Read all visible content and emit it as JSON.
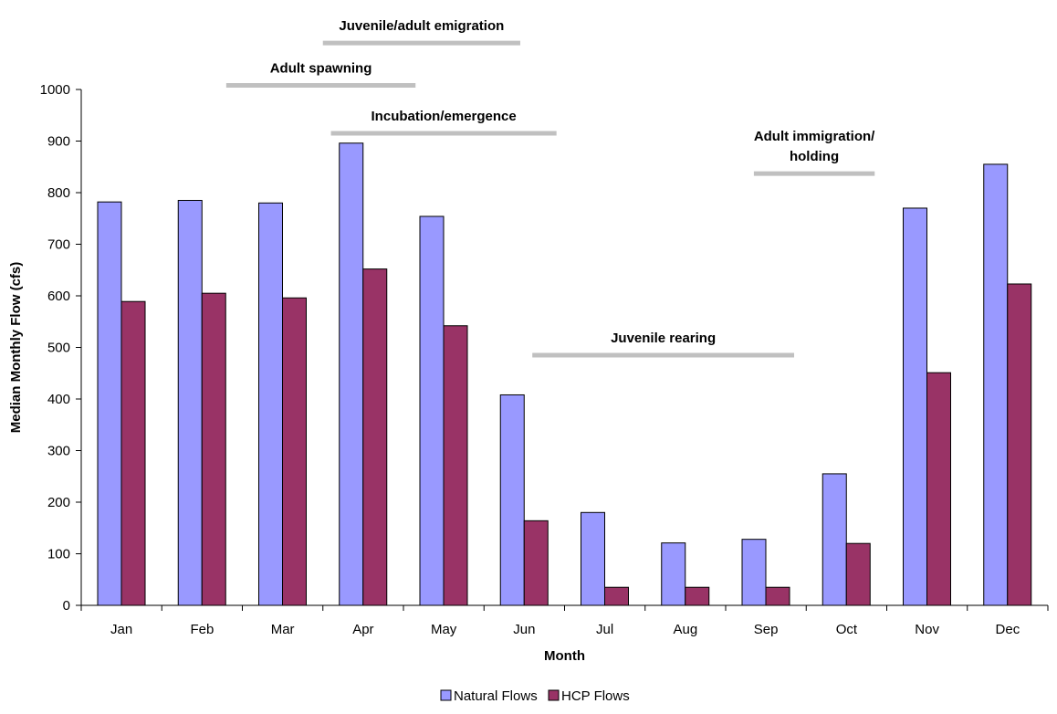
{
  "chart_data": {
    "type": "bar",
    "title": "",
    "xlabel": "Month",
    "ylabel": "Median Monthly Flow (cfs)",
    "ylim": [
      0,
      1000
    ],
    "yticks": [
      0,
      100,
      200,
      300,
      400,
      500,
      600,
      700,
      800,
      900,
      1000
    ],
    "categories": [
      "Jan",
      "Feb",
      "Mar",
      "Apr",
      "May",
      "Jun",
      "Jul",
      "Aug",
      "Sep",
      "Oct",
      "Nov",
      "Dec"
    ],
    "series": [
      {
        "name": "Natural Flows",
        "color": "#9999ff",
        "values": [
          782,
          785,
          780,
          896,
          754,
          408,
          180,
          121,
          128,
          255,
          770,
          855
        ]
      },
      {
        "name": "HCP Flows",
        "color": "#993366",
        "values": [
          589,
          605,
          596,
          652,
          542,
          164,
          35,
          35,
          35,
          120,
          451,
          623
        ]
      }
    ],
    "grid": false,
    "legend_position": "bottom",
    "annotations": [
      {
        "lines": [
          "Juvenile/adult emigration"
        ],
        "level": 1090,
        "from_month": 3.0,
        "to_month": 5.45
      },
      {
        "lines": [
          "Adult spawning"
        ],
        "level": 1008,
        "from_month": 1.8,
        "to_month": 4.15
      },
      {
        "lines": [
          "Incubation/emergence"
        ],
        "level": 915,
        "from_month": 3.1,
        "to_month": 5.9
      },
      {
        "lines": [
          "Adult immigration/",
          "holding"
        ],
        "level": 837,
        "from_month": 8.35,
        "to_month": 9.85
      },
      {
        "lines": [
          "Juvenile rearing"
        ],
        "level": 485,
        "from_month": 5.6,
        "to_month": 8.85
      }
    ],
    "annotation_color": "#c0c0c0"
  }
}
